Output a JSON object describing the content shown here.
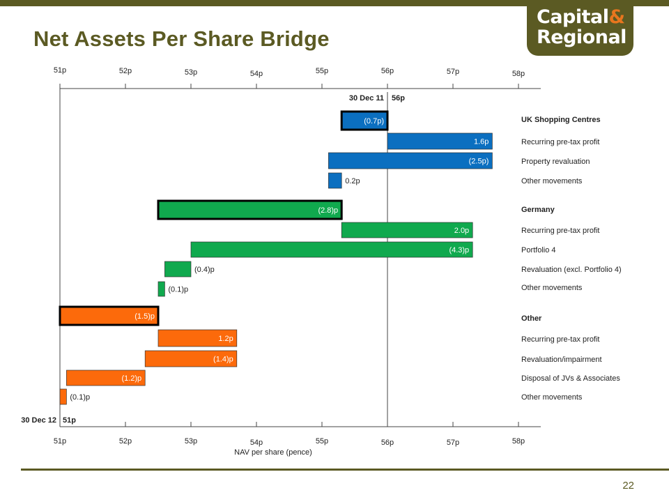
{
  "title": "Net Assets Per Share Bridge",
  "logo": {
    "line1": "Capital",
    "ampersand": "&",
    "line2": "Regional"
  },
  "page_number": "22",
  "colors": {
    "brand": "#5b5a23",
    "logo_accent": "#e8761e",
    "uk": "#0b6fc0",
    "germany": "#10a94e",
    "other": "#fc6a0b"
  },
  "chart_data": {
    "type": "bar",
    "orientation": "horizontal",
    "subtype": "waterfall",
    "xlabel": "NAV per share (pence)",
    "xlim": [
      51,
      58
    ],
    "ticks": [
      51,
      52,
      53,
      54,
      55,
      56,
      57,
      58
    ],
    "tick_labels": [
      "51p",
      "52p",
      "53p",
      "54p",
      "55p",
      "56p",
      "57p",
      "58p"
    ],
    "start": {
      "label": "30 Dec 11",
      "value_label": "56p",
      "value": 56
    },
    "end": {
      "label": "30 Dec 12",
      "value_label": "51p",
      "value": 51
    },
    "groups": [
      {
        "name": "UK Shopping Centres",
        "color": "#0b6fc0",
        "items": [
          {
            "label": "",
            "from": 56.0,
            "to": 55.3,
            "value_label": "(0.7p)",
            "subtotal": true
          },
          {
            "label": "Recurring pre-tax profit",
            "from": 56.0,
            "to": 57.6,
            "value_label": "1.6p"
          },
          {
            "label": "Property revaluation",
            "from": 57.6,
            "to": 55.1,
            "value_label": "(2.5p)"
          },
          {
            "label": "Other movements",
            "from": 55.1,
            "to": 55.3,
            "value_label": "0.2p"
          }
        ]
      },
      {
        "name": "Germany",
        "color": "#10a94e",
        "items": [
          {
            "label": "",
            "from": 55.3,
            "to": 52.5,
            "value_label": "(2.8)p",
            "subtotal": true
          },
          {
            "label": "Recurring pre-tax profit",
            "from": 55.3,
            "to": 57.3,
            "value_label": "2.0p"
          },
          {
            "label": "Portfolio 4",
            "from": 57.3,
            "to": 53.0,
            "value_label": "(4.3)p"
          },
          {
            "label": "Revaluation (excl. Portfolio 4)",
            "from": 53.0,
            "to": 52.6,
            "value_label": "(0.4)p"
          },
          {
            "label": "Other movements",
            "from": 52.6,
            "to": 52.5,
            "value_label": "(0.1)p"
          }
        ]
      },
      {
        "name": "Other",
        "color": "#fc6a0b",
        "items": [
          {
            "label": "",
            "from": 52.5,
            "to": 51.0,
            "value_label": "(1.5)p",
            "subtotal": true
          },
          {
            "label": "Recurring pre-tax profit",
            "from": 52.5,
            "to": 53.7,
            "value_label": "1.2p"
          },
          {
            "label": "Revaluation/impairment",
            "from": 53.7,
            "to": 52.3,
            "value_label": "(1.4)p"
          },
          {
            "label": "Disposal of JVs & Associates",
            "from": 52.3,
            "to": 51.1,
            "value_label": "(1.2)p"
          },
          {
            "label": "Other movements",
            "from": 51.1,
            "to": 51.0,
            "value_label": "(0.1)p"
          }
        ]
      }
    ]
  }
}
